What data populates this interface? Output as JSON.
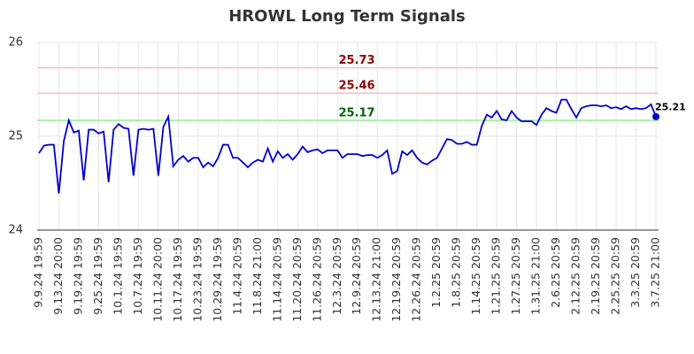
{
  "chart_data": {
    "type": "line",
    "title": "HROWL Long Term Signals",
    "categories": [
      "9.9.24 19:59",
      null,
      null,
      null,
      "9.13.24 20:00",
      null,
      null,
      null,
      "9.19.24 19:59",
      null,
      null,
      null,
      "9.25.24 19:59",
      null,
      null,
      null,
      "10.1.24 19:59",
      null,
      null,
      null,
      "10.7.24 19:59",
      null,
      null,
      null,
      "10.11.24 20:00",
      null,
      null,
      null,
      "10.17.24 19:59",
      null,
      null,
      null,
      "10.23.24 19:59",
      null,
      null,
      null,
      "10.29.24 19:59",
      null,
      null,
      null,
      "11.4.24 20:59",
      null,
      null,
      null,
      "11.8.24 21:00",
      null,
      null,
      null,
      "11.14.24 20:59",
      null,
      null,
      null,
      "11.20.24 20:59",
      null,
      null,
      null,
      "11.26.24 20:59",
      null,
      null,
      null,
      "12.3.24 20:59",
      null,
      null,
      null,
      "12.9.24 20:59",
      null,
      null,
      null,
      "12.13.24 21:00",
      null,
      null,
      null,
      "12.19.24 20:59",
      null,
      null,
      null,
      "12.26.24 20:59",
      null,
      null,
      null,
      "1.2.25 20:59",
      null,
      null,
      null,
      "1.8.25 20:59",
      null,
      null,
      null,
      "1.14.25 20:59",
      null,
      null,
      null,
      "1.21.25 20:59",
      null,
      null,
      null,
      "1.27.25 20:59",
      null,
      null,
      null,
      "1.31.25 21:00",
      null,
      null,
      null,
      "2.6.25 20:59",
      null,
      null,
      null,
      "2.12.25 20:59",
      null,
      null,
      null,
      "2.19.25 20:59",
      null,
      null,
      null,
      "2.25.25 20:59",
      null,
      null,
      null,
      "3.3.25 20:59",
      null,
      null,
      null,
      "3.7.25 21:00"
    ],
    "values": [
      24.82,
      24.9,
      24.91,
      24.91,
      24.39,
      24.95,
      25.17,
      25.04,
      25.06,
      24.53,
      25.07,
      25.07,
      25.03,
      25.05,
      24.51,
      25.07,
      25.13,
      25.09,
      25.08,
      24.58,
      25.07,
      25.08,
      25.07,
      25.08,
      24.58,
      25.1,
      25.21,
      24.68,
      24.75,
      24.79,
      24.73,
      24.77,
      24.77,
      24.67,
      24.72,
      24.68,
      24.77,
      24.91,
      24.91,
      24.77,
      24.77,
      24.72,
      24.67,
      24.72,
      24.75,
      24.73,
      24.87,
      24.73,
      24.84,
      24.77,
      24.81,
      24.75,
      24.81,
      24.89,
      24.83,
      24.85,
      24.86,
      24.82,
      24.85,
      24.85,
      24.85,
      24.77,
      24.81,
      24.81,
      24.81,
      24.79,
      24.8,
      24.8,
      24.77,
      24.8,
      24.85,
      24.6,
      24.63,
      24.84,
      24.8,
      24.85,
      24.77,
      24.72,
      24.7,
      24.74,
      24.77,
      24.87,
      24.97,
      24.96,
      24.92,
      24.92,
      24.94,
      24.91,
      24.91,
      25.11,
      25.23,
      25.2,
      25.27,
      25.18,
      25.17,
      25.27,
      25.2,
      25.16,
      25.16,
      25.16,
      25.12,
      25.23,
      25.3,
      25.27,
      25.25,
      25.39,
      25.39,
      25.29,
      25.2,
      25.3,
      25.32,
      25.33,
      25.33,
      25.32,
      25.33,
      25.3,
      25.31,
      25.29,
      25.32,
      25.29,
      25.3,
      25.29,
      25.3,
      25.34,
      25.21
    ],
    "color": "#0000cc",
    "hlines": [
      {
        "value": 25.73,
        "color": "#ffbbbb",
        "label_color": "#8b0000"
      },
      {
        "value": 25.46,
        "color": "#ffbbbb",
        "label_color": "#8b0000"
      },
      {
        "value": 25.17,
        "color": "#90ee90",
        "label_color": "#006400"
      }
    ],
    "ylim": [
      24,
      26
    ],
    "yticks": [
      24,
      25,
      26
    ],
    "grid": true
  }
}
